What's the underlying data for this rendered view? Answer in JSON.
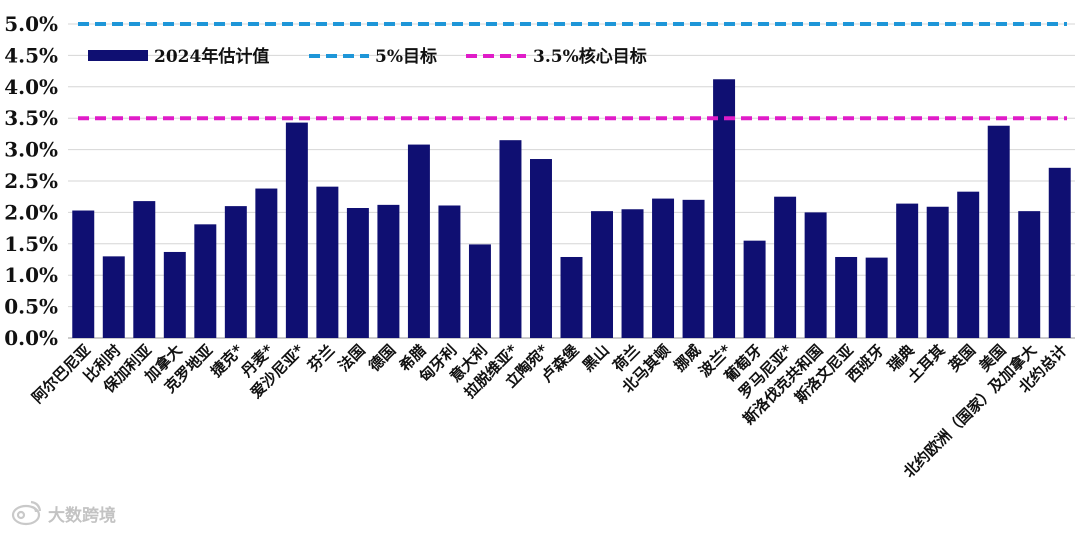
{
  "chart_data": {
    "type": "bar",
    "title": "",
    "xlabel": "",
    "ylabel": "",
    "ylim": [
      0,
      5.0
    ],
    "y_ticks": [
      "0.0%",
      "0.5%",
      "1.0%",
      "1.5%",
      "2.0%",
      "2.5%",
      "3.0%",
      "3.5%",
      "4.0%",
      "4.5%",
      "5.0%"
    ],
    "grid": true,
    "legend_position": "top-left",
    "categories": [
      "阿尔巴尼亚",
      "比利时",
      "保加利亚",
      "加拿大",
      "克罗地亚",
      "捷克*",
      "丹麦*",
      "爱沙尼亚*",
      "芬兰",
      "法国",
      "德国",
      "希腊",
      "匈牙利",
      "意大利",
      "拉脱维亚*",
      "立陶宛*",
      "卢森堡",
      "黑山",
      "荷兰",
      "北马其顿",
      "挪威",
      "波兰*",
      "葡萄牙",
      "罗马尼亚*",
      "斯洛伐克共和国",
      "斯洛文尼亚",
      "西班牙",
      "瑞典",
      "土耳其",
      "英国",
      "美国",
      "北约欧洲（国家）及加拿大",
      "北约总计"
    ],
    "series": [
      {
        "name": "2024年估计值",
        "color": "#0f0f72",
        "values": [
          2.03,
          1.3,
          2.18,
          1.37,
          1.81,
          2.1,
          2.38,
          3.43,
          2.41,
          2.07,
          2.12,
          3.08,
          2.11,
          1.49,
          3.15,
          2.85,
          1.29,
          2.02,
          2.05,
          2.22,
          2.2,
          4.12,
          1.55,
          2.25,
          2.0,
          1.29,
          1.28,
          2.14,
          2.09,
          2.33,
          3.38,
          2.02,
          2.71
        ]
      }
    ],
    "reference_lines": [
      {
        "name": "5%目标",
        "value": 5.0,
        "color": "#1e96d8",
        "style": "dashed"
      },
      {
        "name": "3.5%核心目标",
        "value": 3.5,
        "color": "#e01cc8",
        "style": "dashed"
      }
    ]
  },
  "watermark": {
    "text": "大数跨境",
    "icon": "weibo-logo-icon"
  }
}
